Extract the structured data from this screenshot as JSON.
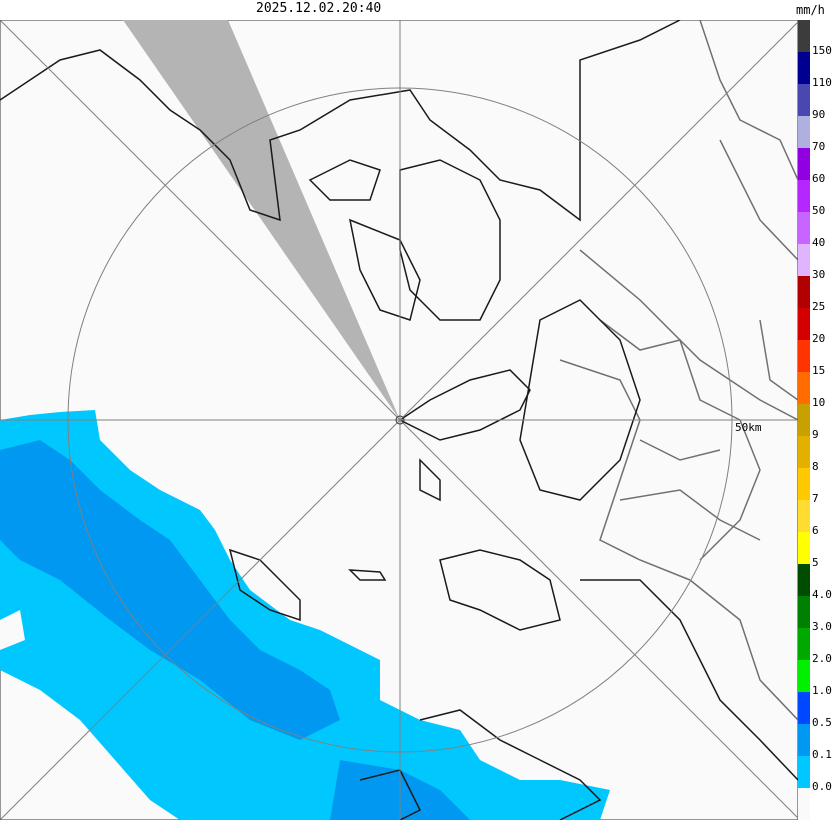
{
  "header": {
    "timestamp": "2025.12.02.20:40",
    "unit": "mm/h"
  },
  "map": {
    "range_ring_label": "50km",
    "colors": {
      "ring": "#808080",
      "coast": "#1a1a1a",
      "border": "#707070",
      "blocked_sector": "#b4b4b4",
      "background": "#fafafa"
    }
  },
  "legend": {
    "labels": [
      "150",
      "110",
      "90",
      "70",
      "60",
      "50",
      "40",
      "30",
      "25",
      "20",
      "15",
      "10",
      "9",
      "8",
      "7",
      "6",
      "5",
      "4.0",
      "3.0",
      "2.0",
      "1.0",
      "0.5",
      "0.1",
      "0.0"
    ],
    "colors": [
      "#3c3c3c",
      "#000090",
      "#4848b0",
      "#b0b0e0",
      "#9000e0",
      "#b428ff",
      "#c864ff",
      "#e0b4ff",
      "#b00000",
      "#d40000",
      "#ff3400",
      "#ff6c00",
      "#c8a000",
      "#e4b000",
      "#ffc800",
      "#ffdc30",
      "#ffff00",
      "#004c00",
      "#008000",
      "#00a800",
      "#00f000",
      "#0048ff",
      "#0098f0",
      "#00c8ff",
      "#fafafa"
    ]
  }
}
